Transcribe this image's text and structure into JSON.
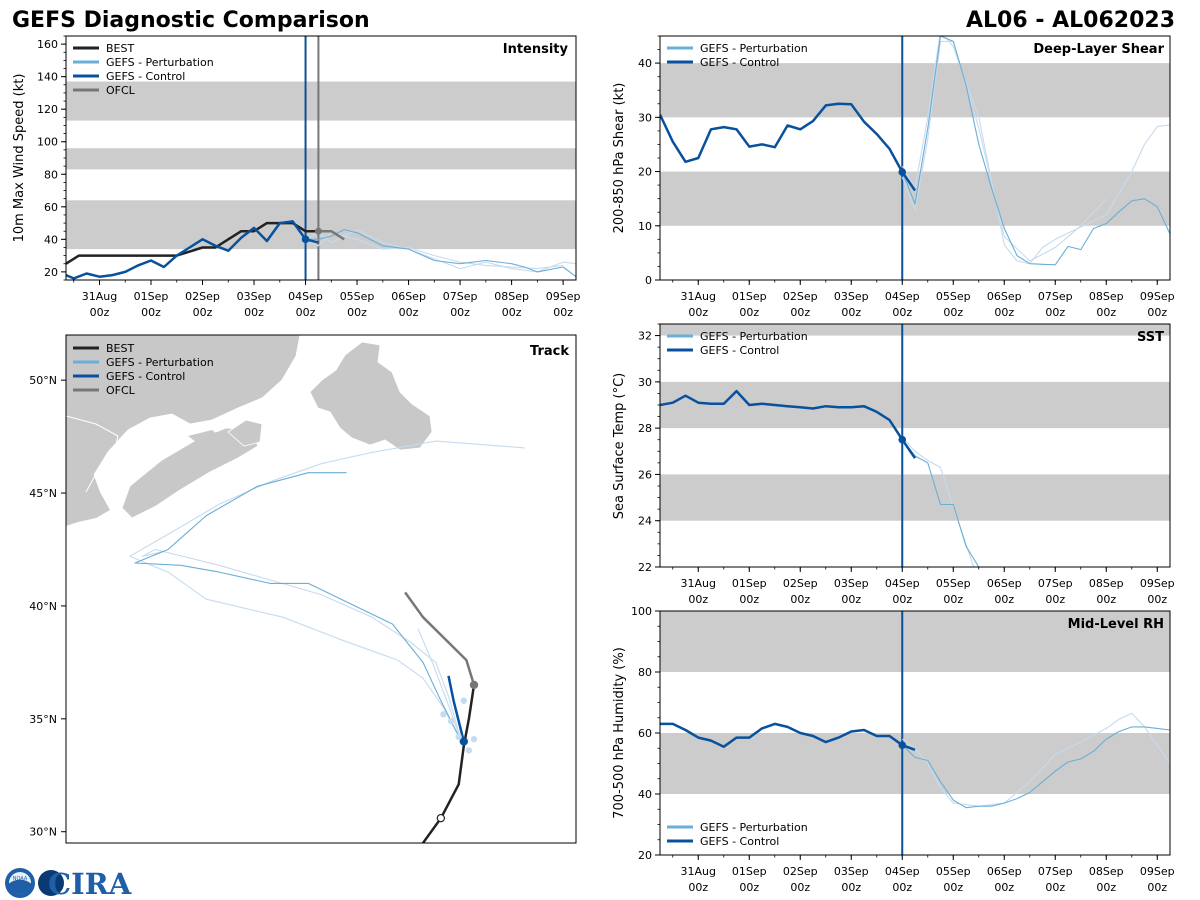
{
  "header": {
    "title": "GEFS Diagnostic Comparison",
    "storm_id": "AL06 - AL062023"
  },
  "colors": {
    "best": "#222222",
    "perturbation": "#6baed6",
    "perturbation_light": "#c6dbef",
    "control": "#08519c",
    "ofcl": "#777777",
    "band": "#cccccc",
    "land": "#c8c8c8"
  },
  "logos": {
    "noaa": "NOAA",
    "cira": "CIRA"
  },
  "time_axis": {
    "ticks": [
      {
        "day": 1,
        "label1": "31Aug",
        "label2": "00z"
      },
      {
        "day": 2,
        "label1": "01Sep",
        "label2": "00z"
      },
      {
        "day": 3,
        "label1": "02Sep",
        "label2": "00z"
      },
      {
        "day": 4,
        "label1": "03Sep",
        "label2": "00z"
      },
      {
        "day": 5,
        "label1": "04Sep",
        "label2": "00z"
      },
      {
        "day": 6,
        "label1": "05Sep",
        "label2": "00z"
      },
      {
        "day": 7,
        "label1": "06Sep",
        "label2": "00z"
      },
      {
        "day": 8,
        "label1": "07Sep",
        "label2": "00z"
      },
      {
        "day": 9,
        "label1": "08Sep",
        "label2": "00z"
      },
      {
        "day": 10,
        "label1": "09Sep",
        "label2": "00z"
      }
    ],
    "init_day": 5.0,
    "ofcl_day": 5.25
  },
  "chart_data": [
    {
      "id": "intensity",
      "type": "line",
      "title": "Intensity",
      "ylabel": "10m Max Wind Speed (kt)",
      "xlim": [
        0.35,
        10.25
      ],
      "ylim": [
        15,
        165
      ],
      "yticks": [
        20,
        40,
        60,
        80,
        100,
        120,
        140,
        160
      ],
      "bands": [
        [
          34,
          64
        ],
        [
          83,
          96
        ],
        [
          113,
          137
        ]
      ],
      "vlines": [
        "init",
        "ofcl"
      ],
      "legend": [
        "BEST",
        "GEFS - Perturbation",
        "GEFS - Control",
        "OFCL"
      ],
      "series": [
        {
          "name": "BEST",
          "role": "best",
          "x": [
            0.35,
            0.6,
            1.0,
            1.5,
            2.0,
            2.5,
            3.0,
            3.25,
            3.5,
            3.75,
            4.0,
            4.25,
            4.5,
            4.75,
            5.0,
            5.25
          ],
          "y": [
            25,
            30,
            30,
            30,
            30,
            30,
            35,
            35,
            40,
            45,
            45,
            50,
            50,
            50,
            45,
            45
          ]
        },
        {
          "name": "OFCL",
          "role": "ofcl",
          "x": [
            5.25,
            5.5,
            5.75
          ],
          "y": [
            45,
            45,
            40
          ]
        },
        {
          "name": "GEFS - Control",
          "role": "control",
          "x": [
            0.35,
            0.5,
            0.75,
            1.0,
            1.25,
            1.5,
            1.75,
            2.0,
            2.25,
            2.5,
            2.75,
            3.0,
            3.25,
            3.5,
            3.75,
            4.0,
            4.25,
            4.5,
            4.75,
            5.0,
            5.25
          ],
          "y": [
            18,
            16,
            19,
            17,
            18,
            20,
            24,
            27,
            23,
            30,
            35,
            40,
            36,
            33,
            41,
            47,
            39,
            50,
            51,
            40,
            38
          ]
        },
        {
          "name": "GEFS - Perturbation",
          "role": "perturbation",
          "x": [
            5.0,
            5.25,
            5.5,
            5.75,
            6.0,
            6.25,
            6.5,
            7.0,
            7.5,
            8.0,
            8.5,
            9.0,
            9.25,
            9.5,
            10.0,
            10.25
          ],
          "y": [
            40,
            40,
            42,
            46,
            44,
            40,
            36,
            34,
            27,
            25,
            27,
            25,
            23,
            20,
            23,
            17
          ]
        },
        {
          "name": "GEFS - Perturbation",
          "role": "light",
          "x": [
            5.0,
            5.25,
            5.5,
            5.75,
            6.0,
            6.5,
            7.0,
            7.5,
            8.0,
            8.5,
            9.0,
            9.5,
            10.0,
            10.25
          ],
          "y": [
            40,
            44,
            38,
            42,
            46,
            38,
            34,
            28,
            22,
            26,
            22,
            20,
            26,
            25
          ]
        },
        {
          "name": "GEFS - Perturbation",
          "role": "light",
          "x": [
            5.0,
            5.25,
            5.5,
            6.0,
            6.5,
            7.0,
            7.5,
            8.0,
            8.5,
            9.0,
            9.5,
            10.0
          ],
          "y": [
            40,
            36,
            44,
            40,
            34,
            35,
            30,
            26,
            24,
            23,
            22,
            24
          ]
        }
      ],
      "init_marker": {
        "x": 5.0,
        "y": 40
      }
    },
    {
      "id": "shear",
      "type": "line",
      "title": "Deep-Layer Shear",
      "ylabel": "200-850 hPa Shear (kt)",
      "xlim": [
        0.25,
        10.25
      ],
      "ylim": [
        0,
        45
      ],
      "yticks": [
        0,
        10,
        20,
        30,
        40
      ],
      "bands": [
        [
          10,
          20
        ],
        [
          30,
          40
        ]
      ],
      "vlines": [
        "init"
      ],
      "legend": [
        "GEFS - Perturbation",
        "GEFS - Control"
      ],
      "series": [
        {
          "name": "GEFS - Control",
          "role": "control",
          "x": [
            0.25,
            0.5,
            0.75,
            1.0,
            1.25,
            1.5,
            1.75,
            2.0,
            2.25,
            2.5,
            2.75,
            3.0,
            3.25,
            3.5,
            3.75,
            4.0,
            4.25,
            4.5,
            4.75,
            5.0,
            5.25
          ],
          "y": [
            30.5,
            25.5,
            21.8,
            22.5,
            27.8,
            28.2,
            27.8,
            24.6,
            25.0,
            24.5,
            28.5,
            27.8,
            29.3,
            32.2,
            32.5,
            32.4,
            29.2,
            26.9,
            24.2,
            19.9,
            16.5
          ]
        },
        {
          "name": "GEFS - Perturbation",
          "role": "perturbation",
          "x": [
            5.0,
            5.25,
            5.5,
            5.75,
            6.0,
            6.25,
            6.5,
            6.75,
            7.0,
            7.25,
            7.5,
            7.75,
            8.0,
            8.25,
            8.5,
            8.75,
            9.0,
            9.25,
            9.5,
            9.75,
            10.0,
            10.25
          ],
          "y": [
            20,
            14,
            28,
            45,
            44,
            36,
            25,
            17,
            9.5,
            4.5,
            3.0,
            2.9,
            2.8,
            6.2,
            5.6,
            9.5,
            10.4,
            12.6,
            14.6,
            15.0,
            13.5,
            8.5
          ]
        },
        {
          "name": "GEFS - Perturbation",
          "role": "light",
          "x": [
            5.0,
            5.25,
            5.5,
            5.75,
            6.0,
            6.5,
            7.0,
            7.25,
            7.5,
            7.75,
            8.0,
            8.5,
            9.0,
            9.5,
            9.75,
            10.0,
            10.25
          ],
          "y": [
            21,
            17,
            30,
            46,
            43,
            30,
            6.5,
            3.5,
            3,
            6,
            7.5,
            9.8,
            12,
            20,
            25,
            28.3,
            28.6
          ]
        },
        {
          "name": "GEFS - Perturbation",
          "role": "light",
          "x": [
            5.0,
            5.25,
            5.5,
            5.75,
            6.0,
            6.5,
            7.0,
            7.5,
            8.0,
            8.5,
            9.0
          ],
          "y": [
            19,
            13,
            26,
            44,
            44,
            28,
            8,
            3.5,
            6,
            10,
            15
          ]
        }
      ],
      "init_marker": {
        "x": 5.0,
        "y": 19.9
      }
    },
    {
      "id": "sst",
      "type": "line",
      "title": "SST",
      "ylabel": "Sea Surface Temp (°C)",
      "xlim": [
        0.25,
        10.25
      ],
      "ylim": [
        22,
        32.5
      ],
      "yticks": [
        22,
        24,
        26,
        28,
        30,
        32
      ],
      "bands": [
        [
          24,
          26
        ],
        [
          28,
          30
        ],
        [
          32,
          34
        ]
      ],
      "vlines": [
        "init"
      ],
      "legend": [
        "GEFS - Perturbation",
        "GEFS - Control"
      ],
      "series": [
        {
          "name": "GEFS - Control",
          "role": "control",
          "x": [
            0.25,
            0.5,
            0.75,
            1.0,
            1.25,
            1.5,
            1.75,
            2.0,
            2.25,
            2.5,
            2.75,
            3.0,
            3.25,
            3.5,
            3.75,
            4.0,
            4.25,
            4.5,
            4.75,
            5.0,
            5.25
          ],
          "y": [
            29.0,
            29.1,
            29.4,
            29.1,
            29.05,
            29.05,
            29.6,
            29.0,
            29.05,
            29.0,
            28.95,
            28.9,
            28.85,
            28.95,
            28.9,
            28.9,
            28.95,
            28.7,
            28.35,
            27.5,
            26.7
          ]
        },
        {
          "name": "GEFS - Perturbation",
          "role": "perturbation",
          "x": [
            5.0,
            5.25,
            5.5,
            5.75,
            6.0,
            6.25,
            6.5
          ],
          "y": [
            27.5,
            26.8,
            26.5,
            24.7,
            24.7,
            22.9,
            22.0
          ]
        },
        {
          "name": "GEFS - Perturbation",
          "role": "light",
          "x": [
            5.0,
            5.25,
            5.5,
            5.75,
            6.0,
            6.25,
            6.4
          ],
          "y": [
            27.6,
            27.0,
            26.6,
            26.3,
            24.6,
            23.0,
            22.0
          ]
        }
      ],
      "init_marker": {
        "x": 5.0,
        "y": 27.5
      }
    },
    {
      "id": "rh",
      "type": "line",
      "title": "Mid-Level RH",
      "ylabel": "700-500 hPa Humidity (%)",
      "xlim": [
        0.25,
        10.25
      ],
      "ylim": [
        20,
        100
      ],
      "yticks": [
        20,
        40,
        60,
        80,
        100
      ],
      "bands": [
        [
          40,
          60
        ],
        [
          80,
          100
        ]
      ],
      "vlines": [
        "init"
      ],
      "legend": [
        "GEFS - Perturbation",
        "GEFS - Control"
      ],
      "series": [
        {
          "name": "GEFS - Control",
          "role": "control",
          "x": [
            0.25,
            0.5,
            0.75,
            1.0,
            1.25,
            1.5,
            1.75,
            2.0,
            2.25,
            2.5,
            2.75,
            3.0,
            3.25,
            3.5,
            3.75,
            4.0,
            4.25,
            4.5,
            4.75,
            5.0,
            5.25
          ],
          "y": [
            63,
            63,
            61,
            58.5,
            57.5,
            55.5,
            58.5,
            58.5,
            61.5,
            63,
            62,
            60,
            59,
            57,
            58.5,
            60.5,
            61,
            59,
            59,
            56,
            54.5
          ]
        },
        {
          "name": "GEFS - Perturbation",
          "role": "perturbation",
          "x": [
            5.0,
            5.25,
            5.5,
            5.75,
            6.0,
            6.25,
            6.5,
            6.75,
            7.0,
            7.25,
            7.5,
            7.75,
            8.0,
            8.25,
            8.5,
            8.75,
            9.0,
            9.25,
            9.5,
            9.75,
            10.0,
            10.25
          ],
          "y": [
            56,
            52,
            51,
            44,
            38,
            35.5,
            36,
            36,
            37,
            38.5,
            40.5,
            44,
            47.5,
            50.5,
            51.5,
            54,
            58,
            60.5,
            62,
            62,
            61.5,
            61
          ]
        },
        {
          "name": "GEFS - Perturbation",
          "role": "light",
          "x": [
            5.0,
            5.25,
            5.5,
            5.75,
            6.0,
            6.5,
            7.0,
            7.5,
            8.0,
            8.5,
            9.0,
            9.25,
            9.5,
            9.75,
            10.0,
            10.25
          ],
          "y": [
            58,
            55,
            50,
            42,
            37,
            36,
            37,
            44,
            53,
            57,
            61.5,
            64.5,
            66.5,
            62,
            56,
            50
          ]
        }
      ],
      "init_marker": {
        "x": 5.0,
        "y": 56
      }
    },
    {
      "id": "track",
      "type": "scatter",
      "title": "Track",
      "xlabel": "",
      "ylabel": "",
      "xlim": [
        -72,
        -52
      ],
      "ylim": [
        29.5,
        52
      ],
      "yticks": [
        30,
        35,
        40,
        45,
        50
      ],
      "ytick_labels": [
        "30°N",
        "35°N",
        "40°N",
        "45°N",
        "50°N"
      ],
      "legend": [
        "BEST",
        "GEFS - Perturbation",
        "GEFS - Control",
        "OFCL"
      ],
      "series": [
        {
          "name": "BEST",
          "role": "best",
          "lon": [
            -58.0,
            -57.3,
            -56.6,
            -56.4,
            -56.2,
            -56.0
          ],
          "lat": [
            29.5,
            30.6,
            32.1,
            33.8,
            35.0,
            36.5
          ],
          "marker": {
            "lon": -57.3,
            "lat": 30.6
          }
        },
        {
          "name": "OFCL",
          "role": "ofcl",
          "lon": [
            -56.0,
            -56.3,
            -58.0,
            -58.7
          ],
          "lat": [
            36.5,
            37.6,
            39.5,
            40.6
          ],
          "marker": {
            "lon": -56.0,
            "lat": 36.5
          }
        },
        {
          "name": "GEFS - Control",
          "role": "control",
          "lon": [
            -56.4,
            -56.8,
            -57.0
          ],
          "lat": [
            34.0,
            35.8,
            36.9
          ],
          "marker": {
            "lon": -56.4,
            "lat": 34.0
          }
        },
        {
          "name": "GEFS - Perturbation",
          "role": "perturbation",
          "lon": [
            -56.5,
            -57.3,
            -58.0,
            -59.2,
            -62.5,
            -64.0,
            -66.0,
            -67.5,
            -69.3,
            -68.0,
            -67.5,
            -66.5,
            -64.5,
            -62.5,
            -61.0
          ],
          "lat": [
            34.0,
            35.8,
            37.5,
            39.2,
            41.0,
            41.0,
            41.5,
            41.8,
            41.9,
            42.5,
            43.0,
            44.0,
            45.3,
            45.9,
            45.9
          ]
        },
        {
          "name": "GEFS - Perturbation",
          "role": "light",
          "lon": [
            -56.5,
            -57.2,
            -58.0,
            -59.0,
            -61.2,
            -63.5,
            -66.5,
            -68.0,
            -69.5,
            -67.5,
            -66.0,
            -64.0,
            -62.0,
            -60.0,
            -57.5,
            -54.0
          ],
          "lat": [
            34.0,
            35.5,
            36.8,
            37.6,
            38.5,
            39.5,
            40.3,
            41.5,
            42.2,
            43.5,
            44.5,
            45.5,
            46.3,
            46.8,
            47.3,
            47.0
          ]
        },
        {
          "name": "GEFS - Perturbation",
          "role": "light",
          "lon": [
            -56.5,
            -57.0,
            -57.5,
            -58.5,
            -60.0,
            -62.0,
            -66.0,
            -68.5,
            -69.0,
            -68.2
          ],
          "lat": [
            34.0,
            36.0,
            37.5,
            38.4,
            39.5,
            40.5,
            41.8,
            42.5,
            42.2,
            42.4
          ]
        },
        {
          "name": "GEFS - Perturbation",
          "role": "light",
          "lon": [
            -56.5,
            -57.0,
            -57.6,
            -58.2
          ],
          "lat": [
            34.0,
            35.6,
            37.4,
            39.0
          ]
        }
      ]
    }
  ]
}
